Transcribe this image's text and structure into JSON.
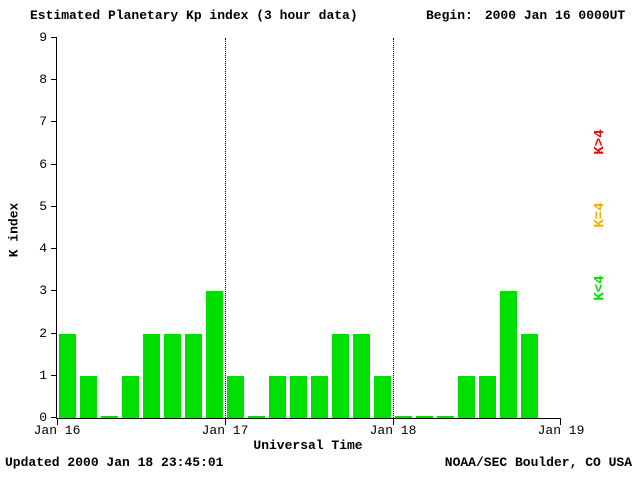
{
  "header": {
    "title": "Estimated Planetary Kp index (3 hour data)",
    "begin_label": "Begin:",
    "begin_value": "2000 Jan 16 0000UT"
  },
  "footer": {
    "updated": "Updated 2000 Jan 18 23:45:01",
    "credit": "NOAA/SEC Boulder, CO USA"
  },
  "legend": [
    {
      "label": "K>4",
      "color": "#ff0000"
    },
    {
      "label": "K=4",
      "color": "#ffaa00"
    },
    {
      "label": "K<4",
      "color": "#00e000"
    }
  ],
  "chart_data": {
    "type": "bar",
    "title": "Estimated Planetary Kp index (3 hour data)",
    "xlabel": "Universal Time",
    "ylabel": "K index",
    "ylim": [
      0,
      9
    ],
    "y_ticks": [
      0,
      1,
      2,
      3,
      4,
      5,
      6,
      7,
      8,
      9
    ],
    "x_tick_labels": [
      "Jan 16",
      "Jan 17",
      "Jan 18",
      "Jan 19"
    ],
    "bars_per_day": 8,
    "interval_hours": 3,
    "colors": {
      "low": "#00e000",
      "mid": "#ffaa00",
      "high": "#ff0000"
    },
    "color_rule": "green if K<4, yellow if K=4, red if K>4",
    "grid": "dotted vertical line at each interior day boundary",
    "days": [
      {
        "date": "2000 Jan 16",
        "values": [
          2,
          1,
          0,
          1,
          2,
          2,
          2,
          3
        ]
      },
      {
        "date": "2000 Jan 17",
        "values": [
          1,
          0,
          1,
          1,
          1,
          2,
          2,
          1
        ]
      },
      {
        "date": "2000 Jan 18",
        "values": [
          0,
          0,
          0,
          1,
          1,
          3,
          2
        ]
      }
    ]
  }
}
